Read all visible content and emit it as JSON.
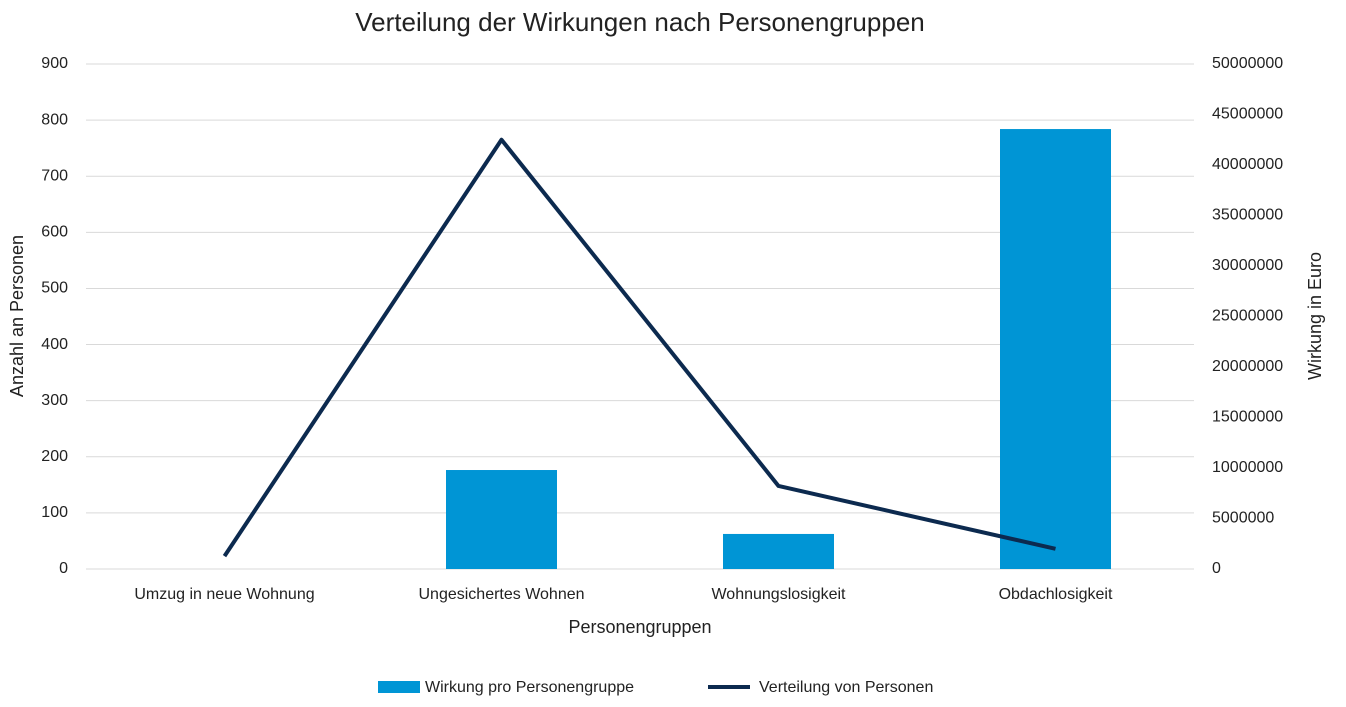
{
  "chart_data": {
    "type": "bar_line",
    "title": "Verteilung der Wirkungen nach Personengruppen",
    "x_label": "Personengruppen",
    "y_label": "Anzahl an Personen",
    "y2_label": "Wirkung in Euro",
    "categories": [
      "Umzug in neue Wohnung",
      "Ungesichertes Wohnen",
      "Wohnungslosigkeit",
      "Obdachlosigkeit"
    ],
    "series": [
      {
        "name": "Wirkung pro Personengruppe",
        "type": "bar",
        "axis": "y2",
        "color": "#0095d5",
        "values": [
          0,
          9800000,
          3470000,
          43560000
        ]
      },
      {
        "name": "Verteilung von Personen",
        "type": "line",
        "axis": "y",
        "color": "#0c2a4f",
        "values": [
          23,
          765,
          148,
          36
        ]
      }
    ],
    "ylim": [
      0,
      900
    ],
    "yticks": [
      0,
      100,
      200,
      300,
      400,
      500,
      600,
      700,
      800,
      900
    ],
    "y2lim": [
      0,
      50000000
    ],
    "y2ticks": [
      0,
      5000000,
      10000000,
      15000000,
      20000000,
      25000000,
      30000000,
      35000000,
      40000000,
      45000000,
      50000000
    ],
    "grid": true,
    "legend": "bottom"
  }
}
